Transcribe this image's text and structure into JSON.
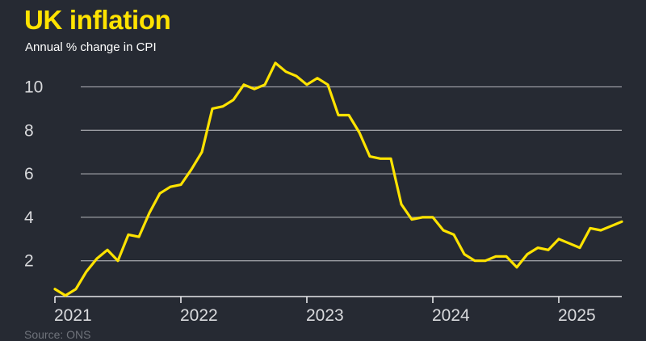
{
  "colors": {
    "background": "#262a33",
    "line": "#ffe300",
    "grid": "#9a9ca2",
    "text": "#d9dadd",
    "title": "#ffe300"
  },
  "source": "Source: ONS",
  "chart_data": {
    "type": "line",
    "title": "UK inflation",
    "subtitle": "Annual % change in CPI",
    "xlabel": "",
    "ylabel": "",
    "ylim": [
      0,
      11.5
    ],
    "y_ticks": [
      2,
      4,
      6,
      8,
      10
    ],
    "x_ticks": [
      "2021",
      "2022",
      "2023",
      "2024",
      "2025"
    ],
    "grid": true,
    "series": [
      {
        "x": [
          "2021-01",
          "2021-02",
          "2021-03",
          "2021-04",
          "2021-05",
          "2021-06",
          "2021-07",
          "2021-08",
          "2021-09",
          "2021-10",
          "2021-11",
          "2021-12",
          "2022-01",
          "2022-02",
          "2022-03",
          "2022-04",
          "2022-05",
          "2022-06",
          "2022-07",
          "2022-08",
          "2022-09",
          "2022-10",
          "2022-11",
          "2022-12",
          "2023-01",
          "2023-02",
          "2023-03",
          "2023-04",
          "2023-05",
          "2023-06",
          "2023-07",
          "2023-08",
          "2023-09",
          "2023-10",
          "2023-11",
          "2023-12",
          "2024-01",
          "2024-02",
          "2024-03",
          "2024-04",
          "2024-05",
          "2024-06",
          "2024-07",
          "2024-08",
          "2024-09",
          "2024-10",
          "2024-11",
          "2024-12",
          "2025-01",
          "2025-02",
          "2025-03",
          "2025-04",
          "2025-05",
          "2025-06",
          "2025-07"
        ],
        "values": [
          0.7,
          0.4,
          0.7,
          1.5,
          2.1,
          2.5,
          2.0,
          3.2,
          3.1,
          4.2,
          5.1,
          5.4,
          5.5,
          6.2,
          7.0,
          9.0,
          9.1,
          9.4,
          10.1,
          9.9,
          10.1,
          11.1,
          10.7,
          10.5,
          10.1,
          10.4,
          10.1,
          8.7,
          8.7,
          7.9,
          6.8,
          6.7,
          6.7,
          4.6,
          3.9,
          4.0,
          4.0,
          3.4,
          3.2,
          2.3,
          2.0,
          2.0,
          2.2,
          2.2,
          1.7,
          2.3,
          2.6,
          2.5,
          3.0,
          2.8,
          2.6,
          3.5,
          3.4,
          3.6,
          3.8
        ]
      }
    ]
  }
}
